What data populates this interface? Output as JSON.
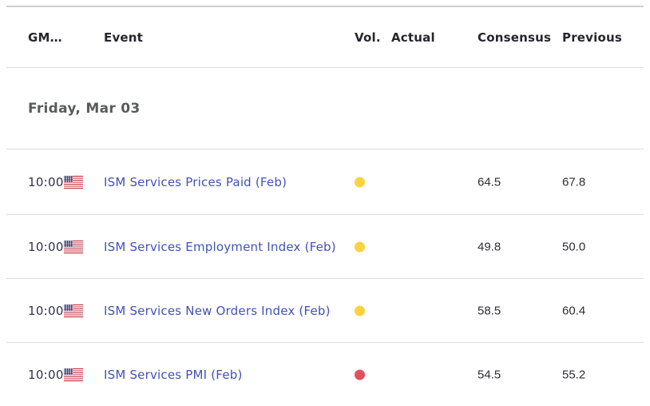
{
  "header": {
    "columns": [
      "GM…",
      "Event",
      "Vol.",
      "Actual",
      "Consensus",
      "Previous"
    ]
  },
  "date_row": {
    "label": "Friday, Mar 03"
  },
  "rows": [
    {
      "time": "10:00",
      "country_flag": "united-states",
      "event": "ISM Services Prices Paid (Feb)",
      "vol_impact": "medium-volatility",
      "vol_color": "#fbd33c",
      "actual": "",
      "consensus": "64.5",
      "previous": "67.8"
    },
    {
      "time": "10:00",
      "country_flag": "united-states",
      "event": "ISM Services Employment Index (Feb)",
      "vol_impact": "medium-volatility",
      "vol_color": "#fbd33c",
      "actual": "",
      "consensus": "49.8",
      "previous": "50.0"
    },
    {
      "time": "10:00",
      "country_flag": "united-states",
      "event": "ISM Services New Orders Index (Feb)",
      "vol_impact": "medium-volatility",
      "vol_color": "#fbd33c",
      "actual": "",
      "consensus": "58.5",
      "previous": "60.4"
    },
    {
      "time": "10:00",
      "country_flag": "united-states",
      "event": "ISM Services PMI (Feb)",
      "vol_impact": "high-volatility",
      "vol_color": "#e0515f",
      "actual": "",
      "consensus": "54.5",
      "previous": "55.2"
    }
  ],
  "colors": {
    "event_link": "#4252b5",
    "header_text": "#26262e",
    "date_text": "#595a5c",
    "number_text": "#2e2f36",
    "divider": "#dcdede",
    "top_rule": "#cdd0d0",
    "medium_dot": "#fbd33c",
    "high_dot": "#e0515f"
  }
}
